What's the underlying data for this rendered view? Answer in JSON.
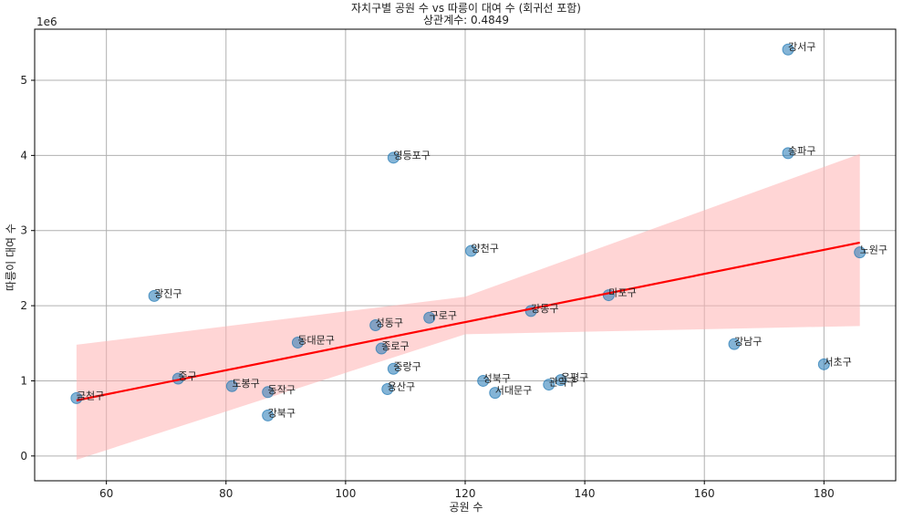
{
  "chart_data": {
    "type": "scatter",
    "title": "자치구별 공원 수 vs 따릉이 대여 수 (회귀선 포함)",
    "subtitle": "상관계수: 0.4849",
    "xlabel": "공원 수",
    "ylabel": "따릉이 대여 수",
    "y_offset_label": "1e6",
    "xlim": [
      48,
      192
    ],
    "ylim": [
      -0.33,
      5.68
    ],
    "xticks": [
      60,
      80,
      100,
      120,
      140,
      160,
      180
    ],
    "yticks": [
      0,
      1,
      2,
      3,
      4,
      5
    ],
    "grid": true,
    "point_color": "#1f77b4",
    "regression_color": "#ff0000",
    "ci_color": "#ffb3b3",
    "points": [
      {
        "label": "강서구",
        "x": 174,
        "y": 5.41
      },
      {
        "label": "송파구",
        "x": 174,
        "y": 4.03
      },
      {
        "label": "영등포구",
        "x": 108,
        "y": 3.97
      },
      {
        "label": "양천구",
        "x": 121,
        "y": 2.73
      },
      {
        "label": "노원구",
        "x": 186,
        "y": 2.71
      },
      {
        "label": "광진구",
        "x": 68,
        "y": 2.13
      },
      {
        "label": "마포구",
        "x": 144,
        "y": 2.14
      },
      {
        "label": "강동구",
        "x": 131,
        "y": 1.93
      },
      {
        "label": "구로구",
        "x": 114,
        "y": 1.84
      },
      {
        "label": "성동구",
        "x": 105,
        "y": 1.74
      },
      {
        "label": "동대문구",
        "x": 92,
        "y": 1.51
      },
      {
        "label": "강남구",
        "x": 165,
        "y": 1.49
      },
      {
        "label": "종로구",
        "x": 106,
        "y": 1.43
      },
      {
        "label": "서초구",
        "x": 180,
        "y": 1.22
      },
      {
        "label": "중랑구",
        "x": 108,
        "y": 1.16
      },
      {
        "label": "중구",
        "x": 72,
        "y": 1.03
      },
      {
        "label": "성북구",
        "x": 123,
        "y": 1.0
      },
      {
        "label": "은평구",
        "x": 136,
        "y": 1.01
      },
      {
        "label": "관악구",
        "x": 134,
        "y": 0.95
      },
      {
        "label": "도봉구",
        "x": 81,
        "y": 0.93
      },
      {
        "label": "용산구",
        "x": 107,
        "y": 0.89
      },
      {
        "label": "동작구",
        "x": 87,
        "y": 0.85
      },
      {
        "label": "서대문구",
        "x": 125,
        "y": 0.84
      },
      {
        "label": "금천구",
        "x": 55,
        "y": 0.77
      },
      {
        "label": "강북구",
        "x": 87,
        "y": 0.54
      }
    ],
    "regression": {
      "x": [
        55,
        186
      ],
      "y": [
        0.74,
        2.84
      ]
    },
    "confidence_band": {
      "x": [
        55,
        120,
        186
      ],
      "lower": [
        -0.05,
        1.62,
        1.73
      ],
      "upper": [
        1.48,
        2.12,
        4.02
      ]
    }
  }
}
